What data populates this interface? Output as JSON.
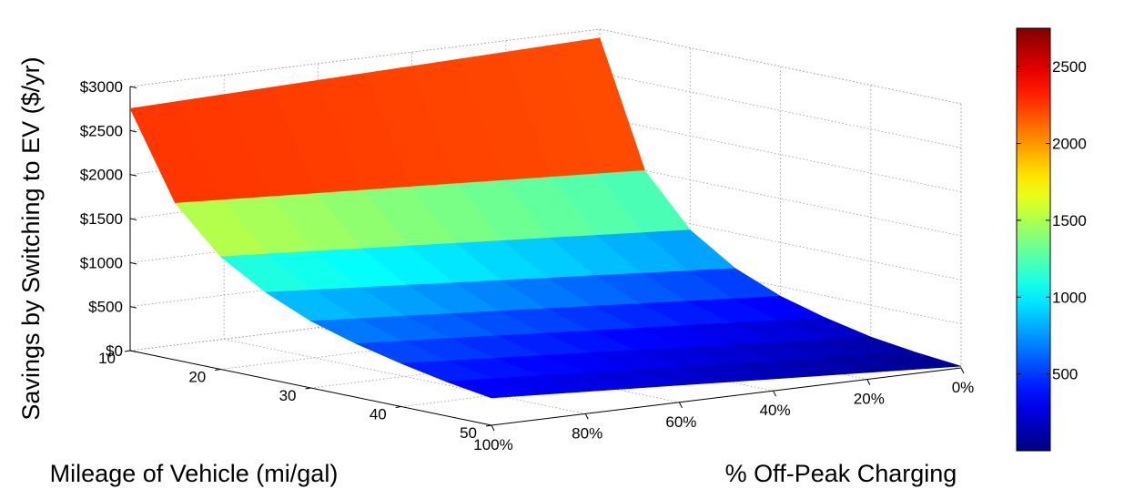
{
  "chart_data": {
    "type": "surface",
    "title": "",
    "zlabel": "Savings by Switching to EV ($/yr)",
    "xlabel": "Mileage of Vehicle (mi/gal)",
    "ylabel": "% Off-Peak Charging",
    "mileage_ticks": [
      "10",
      "20",
      "30",
      "40",
      "50"
    ],
    "offpeak_ticks": [
      "100%",
      "80%",
      "60%",
      "40%",
      "20%",
      "0%"
    ],
    "z_ticks": [
      "$0",
      "$500",
      "$1000",
      "$1500",
      "$2000",
      "$2500",
      "$3000"
    ],
    "zlim": [
      0,
      3000
    ],
    "mileage": [
      10,
      15,
      20,
      25,
      30,
      35,
      40,
      45,
      50
    ],
    "offpeak_percent": [
      100,
      90,
      80,
      70,
      60,
      50,
      40,
      30,
      20,
      10,
      0
    ],
    "savings_at_100pct_offpeak": [
      2750,
      1780,
      1280,
      980,
      760,
      610,
      490,
      390,
      310
    ],
    "savings_at_0pct_offpeak": [
      2900,
      1500,
      930,
      600,
      390,
      250,
      140,
      70,
      20
    ],
    "colorbar": {
      "ticks": [
        "500",
        "1000",
        "1500",
        "2000",
        "2500"
      ],
      "tick_values": [
        500,
        1000,
        1500,
        2000,
        2500
      ],
      "range": [
        0,
        2750
      ],
      "colormap": "jet"
    },
    "grid": true
  }
}
